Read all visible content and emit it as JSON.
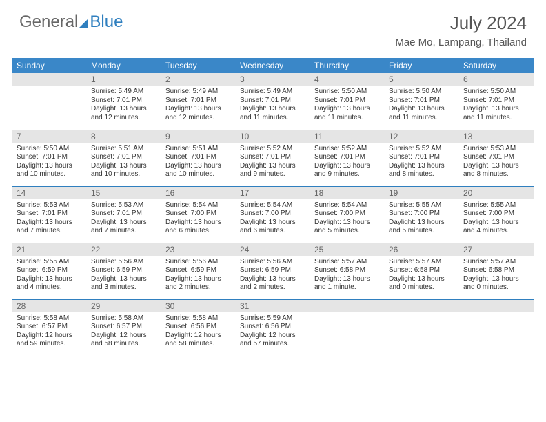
{
  "brand": {
    "part1": "General",
    "part2": "Blue"
  },
  "title": "July 2024",
  "location": "Mae Mo, Lampang, Thailand",
  "colors": {
    "header_bg": "#3a87c8",
    "header_text": "#ffffff",
    "daynum_bg": "#e5e5e5",
    "daynum_text": "#666666",
    "body_text": "#333333",
    "rule": "#2f7fbf",
    "brand_gray": "#666666",
    "brand_blue": "#2f7fbf",
    "page_bg": "#ffffff"
  },
  "typography": {
    "title_fontsize": 26,
    "location_fontsize": 15,
    "weekday_fontsize": 12,
    "daynum_fontsize": 12,
    "body_fontsize": 10
  },
  "weekdays": [
    "Sunday",
    "Monday",
    "Tuesday",
    "Wednesday",
    "Thursday",
    "Friday",
    "Saturday"
  ],
  "weeks": [
    [
      {
        "n": "",
        "sr": "",
        "ss": "",
        "dl": ""
      },
      {
        "n": "1",
        "sr": "Sunrise: 5:49 AM",
        "ss": "Sunset: 7:01 PM",
        "dl": "Daylight: 13 hours and 12 minutes."
      },
      {
        "n": "2",
        "sr": "Sunrise: 5:49 AM",
        "ss": "Sunset: 7:01 PM",
        "dl": "Daylight: 13 hours and 12 minutes."
      },
      {
        "n": "3",
        "sr": "Sunrise: 5:49 AM",
        "ss": "Sunset: 7:01 PM",
        "dl": "Daylight: 13 hours and 11 minutes."
      },
      {
        "n": "4",
        "sr": "Sunrise: 5:50 AM",
        "ss": "Sunset: 7:01 PM",
        "dl": "Daylight: 13 hours and 11 minutes."
      },
      {
        "n": "5",
        "sr": "Sunrise: 5:50 AM",
        "ss": "Sunset: 7:01 PM",
        "dl": "Daylight: 13 hours and 11 minutes."
      },
      {
        "n": "6",
        "sr": "Sunrise: 5:50 AM",
        "ss": "Sunset: 7:01 PM",
        "dl": "Daylight: 13 hours and 11 minutes."
      }
    ],
    [
      {
        "n": "7",
        "sr": "Sunrise: 5:50 AM",
        "ss": "Sunset: 7:01 PM",
        "dl": "Daylight: 13 hours and 10 minutes."
      },
      {
        "n": "8",
        "sr": "Sunrise: 5:51 AM",
        "ss": "Sunset: 7:01 PM",
        "dl": "Daylight: 13 hours and 10 minutes."
      },
      {
        "n": "9",
        "sr": "Sunrise: 5:51 AM",
        "ss": "Sunset: 7:01 PM",
        "dl": "Daylight: 13 hours and 10 minutes."
      },
      {
        "n": "10",
        "sr": "Sunrise: 5:52 AM",
        "ss": "Sunset: 7:01 PM",
        "dl": "Daylight: 13 hours and 9 minutes."
      },
      {
        "n": "11",
        "sr": "Sunrise: 5:52 AM",
        "ss": "Sunset: 7:01 PM",
        "dl": "Daylight: 13 hours and 9 minutes."
      },
      {
        "n": "12",
        "sr": "Sunrise: 5:52 AM",
        "ss": "Sunset: 7:01 PM",
        "dl": "Daylight: 13 hours and 8 minutes."
      },
      {
        "n": "13",
        "sr": "Sunrise: 5:53 AM",
        "ss": "Sunset: 7:01 PM",
        "dl": "Daylight: 13 hours and 8 minutes."
      }
    ],
    [
      {
        "n": "14",
        "sr": "Sunrise: 5:53 AM",
        "ss": "Sunset: 7:01 PM",
        "dl": "Daylight: 13 hours and 7 minutes."
      },
      {
        "n": "15",
        "sr": "Sunrise: 5:53 AM",
        "ss": "Sunset: 7:01 PM",
        "dl": "Daylight: 13 hours and 7 minutes."
      },
      {
        "n": "16",
        "sr": "Sunrise: 5:54 AM",
        "ss": "Sunset: 7:00 PM",
        "dl": "Daylight: 13 hours and 6 minutes."
      },
      {
        "n": "17",
        "sr": "Sunrise: 5:54 AM",
        "ss": "Sunset: 7:00 PM",
        "dl": "Daylight: 13 hours and 6 minutes."
      },
      {
        "n": "18",
        "sr": "Sunrise: 5:54 AM",
        "ss": "Sunset: 7:00 PM",
        "dl": "Daylight: 13 hours and 5 minutes."
      },
      {
        "n": "19",
        "sr": "Sunrise: 5:55 AM",
        "ss": "Sunset: 7:00 PM",
        "dl": "Daylight: 13 hours and 5 minutes."
      },
      {
        "n": "20",
        "sr": "Sunrise: 5:55 AM",
        "ss": "Sunset: 7:00 PM",
        "dl": "Daylight: 13 hours and 4 minutes."
      }
    ],
    [
      {
        "n": "21",
        "sr": "Sunrise: 5:55 AM",
        "ss": "Sunset: 6:59 PM",
        "dl": "Daylight: 13 hours and 4 minutes."
      },
      {
        "n": "22",
        "sr": "Sunrise: 5:56 AM",
        "ss": "Sunset: 6:59 PM",
        "dl": "Daylight: 13 hours and 3 minutes."
      },
      {
        "n": "23",
        "sr": "Sunrise: 5:56 AM",
        "ss": "Sunset: 6:59 PM",
        "dl": "Daylight: 13 hours and 2 minutes."
      },
      {
        "n": "24",
        "sr": "Sunrise: 5:56 AM",
        "ss": "Sunset: 6:59 PM",
        "dl": "Daylight: 13 hours and 2 minutes."
      },
      {
        "n": "25",
        "sr": "Sunrise: 5:57 AM",
        "ss": "Sunset: 6:58 PM",
        "dl": "Daylight: 13 hours and 1 minute."
      },
      {
        "n": "26",
        "sr": "Sunrise: 5:57 AM",
        "ss": "Sunset: 6:58 PM",
        "dl": "Daylight: 13 hours and 0 minutes."
      },
      {
        "n": "27",
        "sr": "Sunrise: 5:57 AM",
        "ss": "Sunset: 6:58 PM",
        "dl": "Daylight: 13 hours and 0 minutes."
      }
    ],
    [
      {
        "n": "28",
        "sr": "Sunrise: 5:58 AM",
        "ss": "Sunset: 6:57 PM",
        "dl": "Daylight: 12 hours and 59 minutes."
      },
      {
        "n": "29",
        "sr": "Sunrise: 5:58 AM",
        "ss": "Sunset: 6:57 PM",
        "dl": "Daylight: 12 hours and 58 minutes."
      },
      {
        "n": "30",
        "sr": "Sunrise: 5:58 AM",
        "ss": "Sunset: 6:56 PM",
        "dl": "Daylight: 12 hours and 58 minutes."
      },
      {
        "n": "31",
        "sr": "Sunrise: 5:59 AM",
        "ss": "Sunset: 6:56 PM",
        "dl": "Daylight: 12 hours and 57 minutes."
      },
      {
        "n": "",
        "sr": "",
        "ss": "",
        "dl": ""
      },
      {
        "n": "",
        "sr": "",
        "ss": "",
        "dl": ""
      },
      {
        "n": "",
        "sr": "",
        "ss": "",
        "dl": ""
      }
    ]
  ]
}
